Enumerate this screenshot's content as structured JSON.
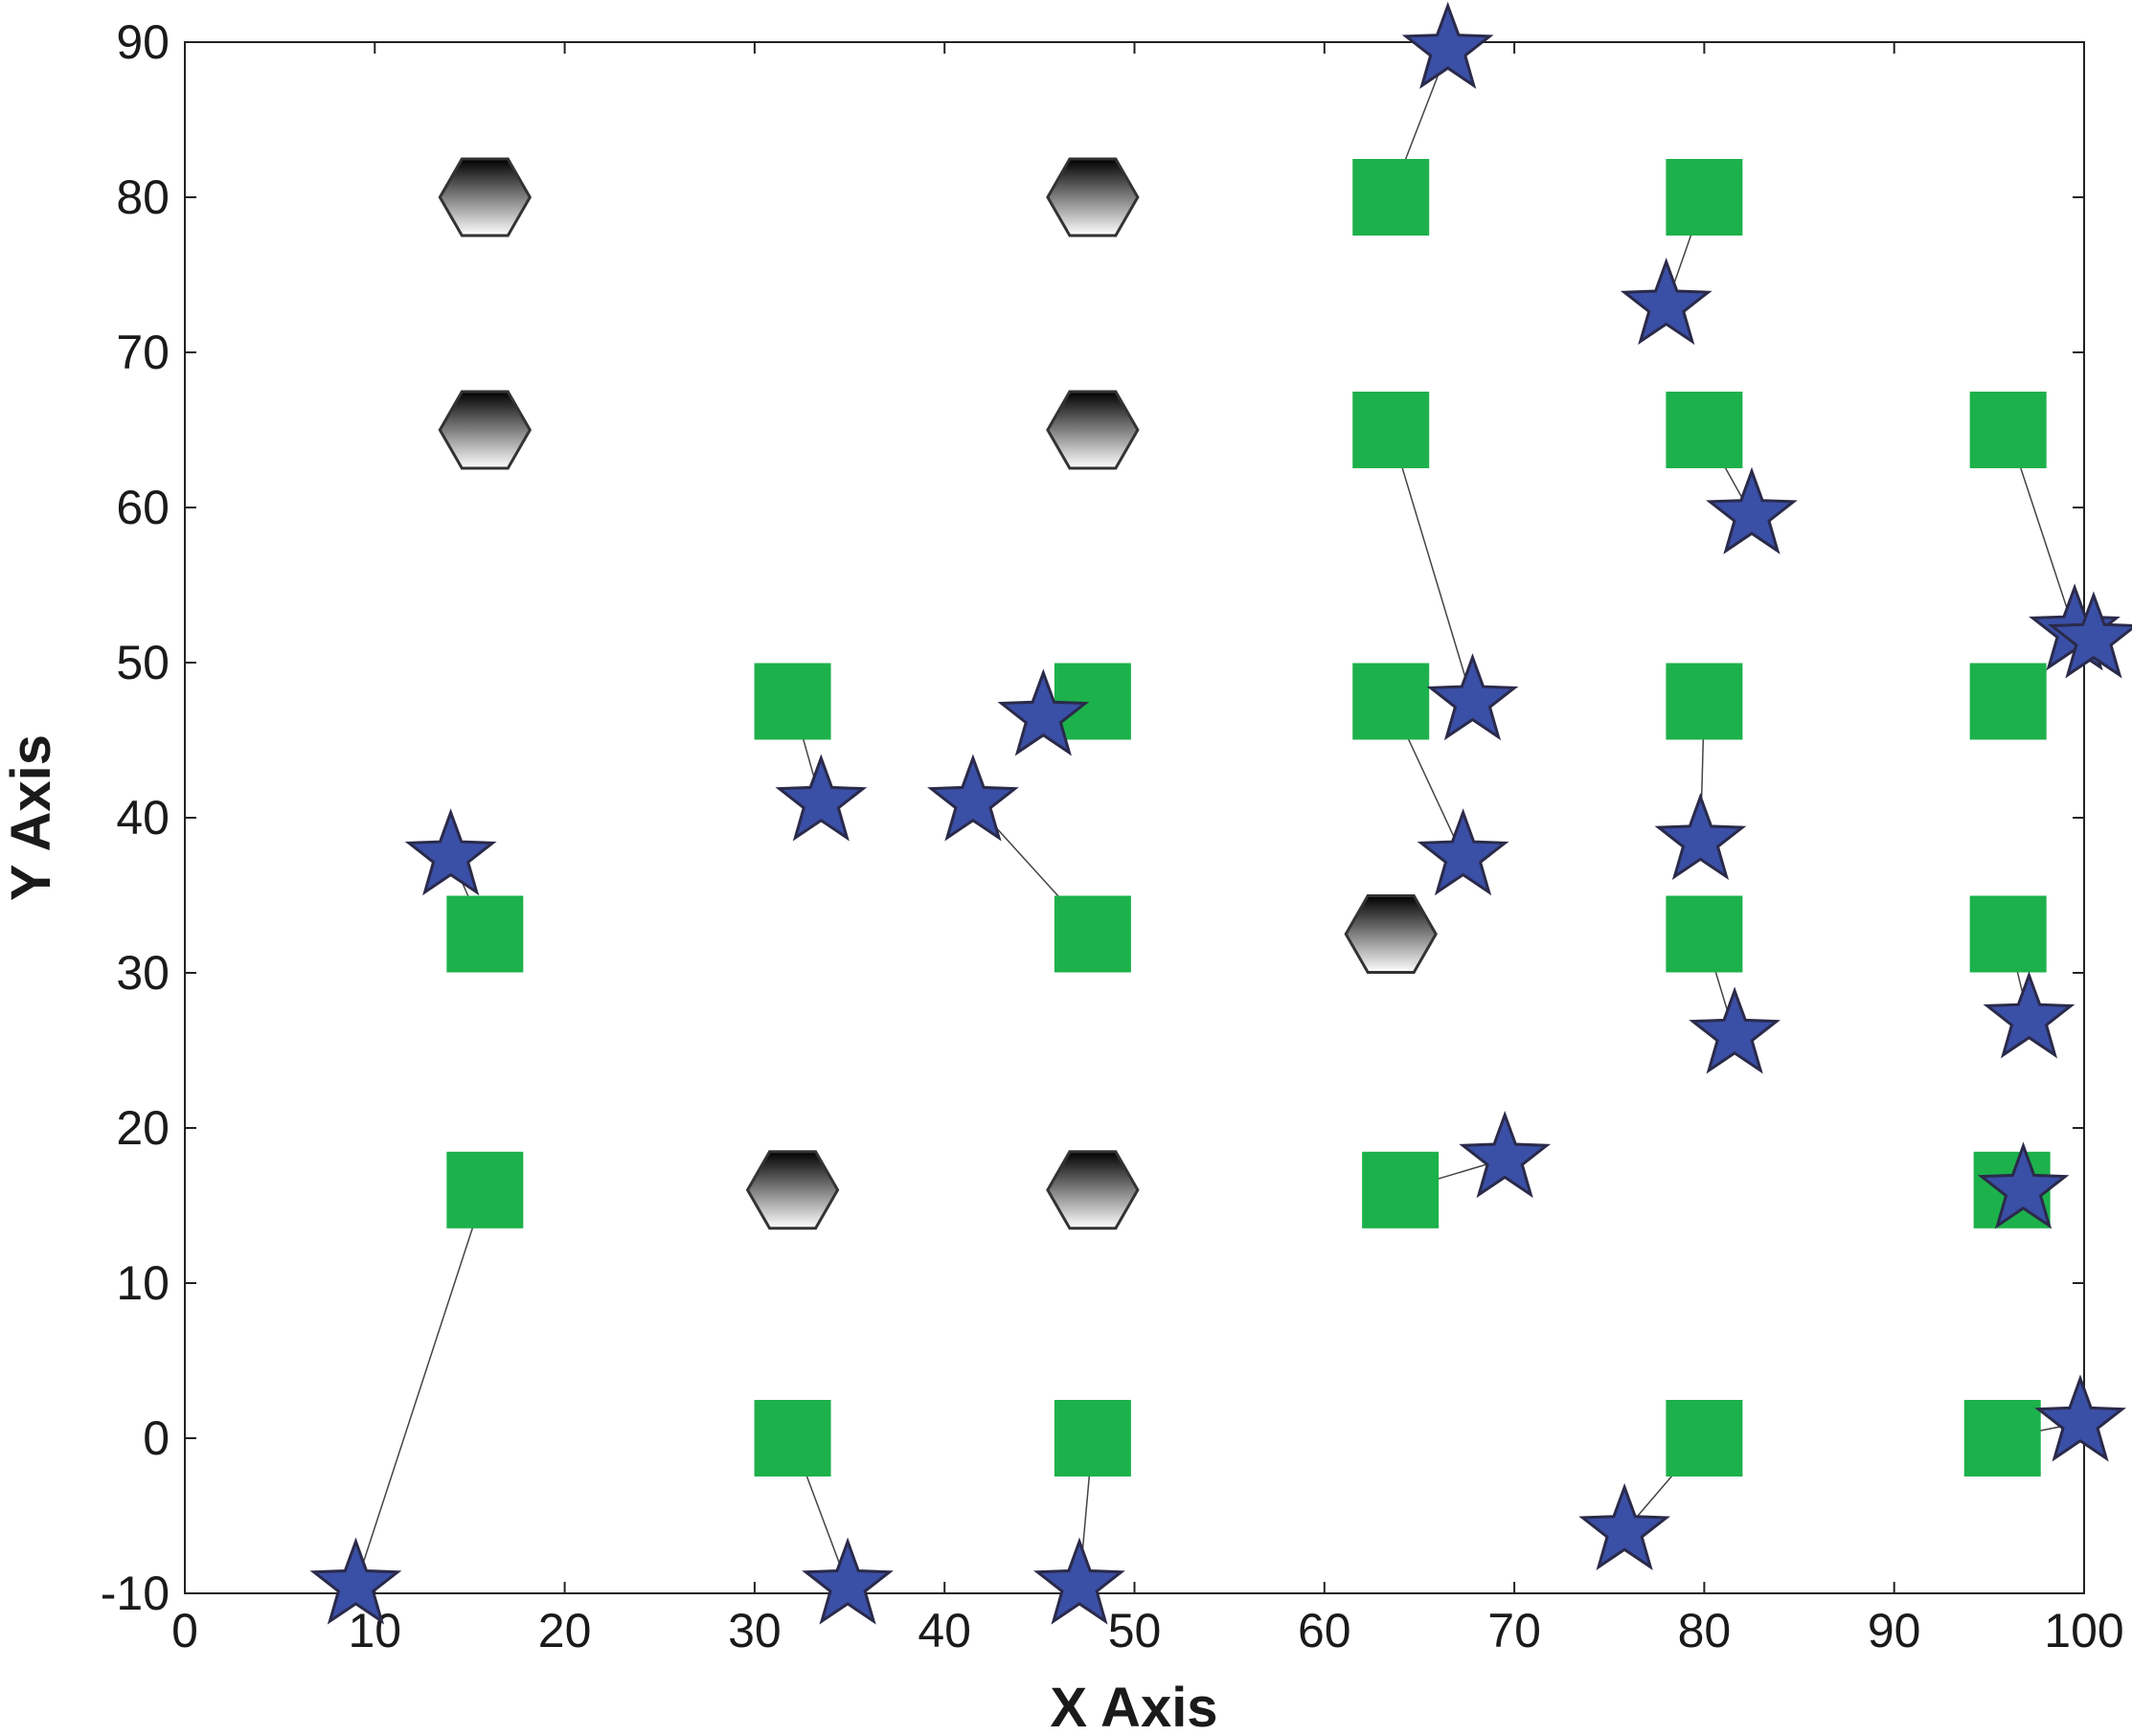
{
  "chart_data": {
    "type": "scatter",
    "xlabel": "X Axis",
    "ylabel": "Y Axis",
    "xlim": [
      0,
      100
    ],
    "ylim": [
      -10,
      90
    ],
    "xticks": [
      0,
      10,
      20,
      30,
      40,
      50,
      60,
      70,
      80,
      90,
      100
    ],
    "yticks": [
      -10,
      0,
      10,
      20,
      30,
      40,
      50,
      60,
      70,
      80,
      90
    ],
    "grid": false,
    "colors": {
      "square": "#1db14b",
      "star": "#3a4fa6",
      "star_edge": "#2a2a4a",
      "hexagon_top": "#000000",
      "hexagon_bottom": "#ffffff",
      "link": "#444444"
    },
    "series": [
      {
        "marker": "hexagon",
        "points": [
          {
            "x": 15.8,
            "y": 80
          },
          {
            "x": 47.8,
            "y": 80
          },
          {
            "x": 15.8,
            "y": 65
          },
          {
            "x": 47.8,
            "y": 65
          },
          {
            "x": 63.5,
            "y": 32.5
          },
          {
            "x": 32.0,
            "y": 16
          },
          {
            "x": 47.8,
            "y": 16
          }
        ]
      },
      {
        "marker": "square",
        "points": [
          {
            "x": 63.5,
            "y": 80
          },
          {
            "x": 80.0,
            "y": 80
          },
          {
            "x": 63.5,
            "y": 65
          },
          {
            "x": 80.0,
            "y": 65
          },
          {
            "x": 96.0,
            "y": 65
          },
          {
            "x": 32.0,
            "y": 47.5
          },
          {
            "x": 47.8,
            "y": 47.5
          },
          {
            "x": 63.5,
            "y": 47.5
          },
          {
            "x": 80.0,
            "y": 47.5
          },
          {
            "x": 96.0,
            "y": 47.5
          },
          {
            "x": 15.8,
            "y": 32.5
          },
          {
            "x": 47.8,
            "y": 32.5
          },
          {
            "x": 80.0,
            "y": 32.5
          },
          {
            "x": 96.0,
            "y": 32.5
          },
          {
            "x": 15.8,
            "y": 16
          },
          {
            "x": 64.0,
            "y": 16
          },
          {
            "x": 96.2,
            "y": 16
          },
          {
            "x": 32.0,
            "y": 0
          },
          {
            "x": 47.8,
            "y": 0
          },
          {
            "x": 80.0,
            "y": 0
          },
          {
            "x": 95.7,
            "y": 0
          }
        ]
      },
      {
        "marker": "star",
        "points": [
          {
            "x": 66.5,
            "y": 89.5
          },
          {
            "x": 78.0,
            "y": 73
          },
          {
            "x": 82.5,
            "y": 59.5
          },
          {
            "x": 99.5,
            "y": 52
          },
          {
            "x": 100.5,
            "y": 51.5
          },
          {
            "x": 45.2,
            "y": 46.5
          },
          {
            "x": 67.8,
            "y": 47.5
          },
          {
            "x": 33.5,
            "y": 41
          },
          {
            "x": 41.5,
            "y": 41
          },
          {
            "x": 14.0,
            "y": 37.5
          },
          {
            "x": 67.3,
            "y": 37.5
          },
          {
            "x": 79.8,
            "y": 38.5
          },
          {
            "x": 81.6,
            "y": 26
          },
          {
            "x": 97.1,
            "y": 27
          },
          {
            "x": 69.5,
            "y": 18
          },
          {
            "x": 96.8,
            "y": 16
          },
          {
            "x": 99.8,
            "y": 1
          },
          {
            "x": 75.8,
            "y": -6
          },
          {
            "x": 9.0,
            "y": -9.5
          },
          {
            "x": 34.9,
            "y": -9.5
          },
          {
            "x": 47.1,
            "y": -9.5
          }
        ]
      }
    ],
    "links": [
      [
        {
          "x": 63.5,
          "y": 80
        },
        {
          "x": 66.5,
          "y": 89.5
        }
      ],
      [
        {
          "x": 80.0,
          "y": 80
        },
        {
          "x": 78.0,
          "y": 73
        }
      ],
      [
        {
          "x": 80.0,
          "y": 65
        },
        {
          "x": 82.5,
          "y": 59.5
        }
      ],
      [
        {
          "x": 96.0,
          "y": 65
        },
        {
          "x": 99.5,
          "y": 52
        }
      ],
      [
        {
          "x": 63.5,
          "y": 65
        },
        {
          "x": 67.8,
          "y": 47.5
        }
      ],
      [
        {
          "x": 32.0,
          "y": 47.5
        },
        {
          "x": 33.5,
          "y": 41
        }
      ],
      [
        {
          "x": 63.5,
          "y": 47.5
        },
        {
          "x": 67.3,
          "y": 37.5
        }
      ],
      [
        {
          "x": 80.0,
          "y": 47.5
        },
        {
          "x": 79.8,
          "y": 38.5
        }
      ],
      [
        {
          "x": 47.8,
          "y": 32.5
        },
        {
          "x": 41.5,
          "y": 41
        }
      ],
      [
        {
          "x": 15.8,
          "y": 32.5
        },
        {
          "x": 14.0,
          "y": 37.5
        }
      ],
      [
        {
          "x": 80.0,
          "y": 32.5
        },
        {
          "x": 81.6,
          "y": 26
        }
      ],
      [
        {
          "x": 96.0,
          "y": 32.5
        },
        {
          "x": 97.1,
          "y": 27
        }
      ],
      [
        {
          "x": 64.0,
          "y": 16
        },
        {
          "x": 69.5,
          "y": 18
        }
      ],
      [
        {
          "x": 15.8,
          "y": 16
        },
        {
          "x": 9.0,
          "y": -9.5
        }
      ],
      [
        {
          "x": 32.0,
          "y": 0
        },
        {
          "x": 34.9,
          "y": -9.5
        }
      ],
      [
        {
          "x": 47.8,
          "y": 0
        },
        {
          "x": 47.1,
          "y": -9.5
        }
      ],
      [
        {
          "x": 80.0,
          "y": 0
        },
        {
          "x": 75.8,
          "y": -6
        }
      ],
      [
        {
          "x": 95.7,
          "y": 0
        },
        {
          "x": 99.8,
          "y": 1
        }
      ]
    ]
  }
}
